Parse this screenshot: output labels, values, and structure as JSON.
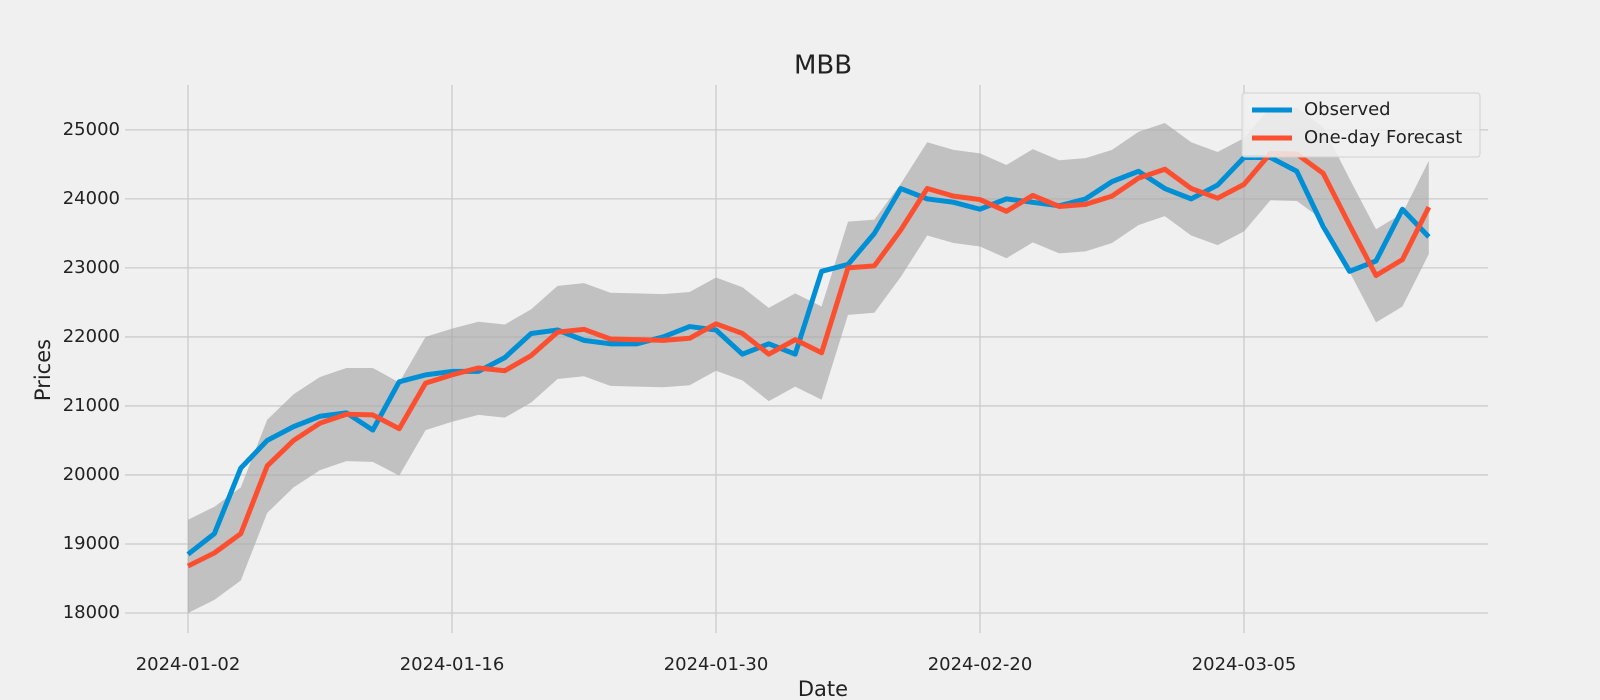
{
  "chart_data": {
    "type": "line",
    "title": "MBB",
    "x_label": "Date",
    "y_label": "Prices",
    "categories": [
      "2024-01-02",
      null,
      null,
      null,
      null,
      null,
      null,
      null,
      null,
      null,
      "2024-01-16",
      null,
      null,
      null,
      null,
      null,
      null,
      null,
      null,
      null,
      "2024-01-30",
      null,
      null,
      null,
      null,
      null,
      null,
      null,
      null,
      null,
      "2024-02-20",
      null,
      null,
      null,
      null,
      null,
      null,
      null,
      null,
      null,
      "2024-03-05",
      null,
      null,
      null,
      null,
      null,
      null,
      null
    ],
    "series": [
      {
        "name": "Observed",
        "color": "#008fd5",
        "values": [
          18850,
          19150,
          20100,
          20500,
          20700,
          20850,
          20900,
          20650,
          21350,
          21450,
          21500,
          21500,
          21700,
          22050,
          22100,
          21950,
          21900,
          21900,
          22000,
          22150,
          22100,
          21750,
          21900,
          21750,
          22950,
          23050,
          23500,
          24150,
          24000,
          23950,
          23850,
          24000,
          23950,
          23900,
          24000,
          24250,
          24400,
          24150,
          24000,
          24200,
          24600,
          24600,
          24400,
          23600,
          22950,
          23100,
          23850,
          23450
        ]
      },
      {
        "name": "One-day Forecast",
        "color": "#fc4f30",
        "values": [
          18680,
          18870,
          19150,
          20130,
          20500,
          20750,
          20880,
          20870,
          20670,
          21330,
          21450,
          21550,
          21510,
          21730,
          22070,
          22110,
          21970,
          21960,
          21950,
          21980,
          22190,
          22050,
          21750,
          21960,
          21770,
          23000,
          23030,
          23550,
          24150,
          24040,
          23990,
          23820,
          24050,
          23890,
          23920,
          24040,
          24300,
          24430,
          24150,
          24010,
          24210,
          24660,
          24650,
          24370,
          23620,
          22890,
          23120,
          23880
        ]
      }
    ],
    "band": {
      "color": "#a8a8a8",
      "upper": [
        19350,
        19540,
        19820,
        20800,
        21170,
        21420,
        21550,
        21550,
        21340,
        22000,
        22120,
        22220,
        22180,
        22400,
        22740,
        22780,
        22640,
        22630,
        22620,
        22650,
        22860,
        22720,
        22420,
        22630,
        22440,
        23670,
        23700,
        24220,
        24820,
        24710,
        24660,
        24490,
        24720,
        24560,
        24590,
        24710,
        24970,
        25100,
        24820,
        24680,
        24880,
        25330,
        25320,
        25040,
        24290,
        23560,
        23790,
        24550
      ],
      "lower": [
        18000,
        18190,
        18470,
        19450,
        19820,
        20070,
        20200,
        20190,
        19990,
        20650,
        20770,
        20870,
        20830,
        21050,
        21390,
        21430,
        21290,
        21280,
        21270,
        21300,
        21510,
        21370,
        21070,
        21280,
        21090,
        22320,
        22350,
        22870,
        23470,
        23360,
        23310,
        23140,
        23370,
        23210,
        23240,
        23360,
        23620,
        23750,
        23470,
        23330,
        23530,
        23980,
        23970,
        23690,
        22940,
        22210,
        22440,
        23200
      ]
    },
    "ylim": [
      17710,
      25650
    ],
    "yticks": [
      18000,
      19000,
      20000,
      21000,
      22000,
      23000,
      24000,
      25000
    ],
    "grid": true,
    "legend": "upper right"
  }
}
